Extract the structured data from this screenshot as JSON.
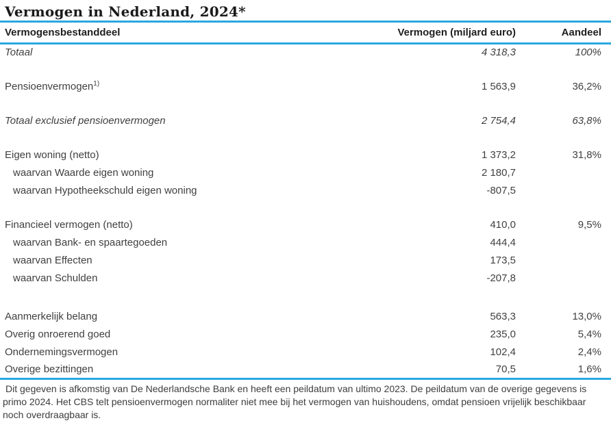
{
  "title": "Vermogen in Nederland, 2024*",
  "colors": {
    "accent_blue": "#2aa7e1",
    "title_text": "#1a1a1a",
    "body_text": "#3f3f3f"
  },
  "table": {
    "columns": [
      "Vermogensbestanddeel",
      "Vermogen (miljard euro)",
      "Aandeel"
    ],
    "rows": [
      {
        "label": "Totaal",
        "value": "4 318,3",
        "share": "100%",
        "style": "italic"
      },
      {
        "label": "Pensioenvermogen",
        "sup": "1)",
        "value": "1 563,9",
        "share": "36,2%",
        "style": "normal"
      },
      {
        "label": "Totaal exclusief pensioenvermogen",
        "value": "2 754,4",
        "share": "63,8%",
        "style": "italic"
      },
      {
        "label": "Eigen woning (netto)",
        "value": "1 373,2",
        "share": "31,8%",
        "style": "normal"
      },
      {
        "label": "waarvan Waarde eigen woning",
        "value": "2 180,7",
        "share": "",
        "style": "sub"
      },
      {
        "label": "waarvan Hypotheekschuld eigen woning",
        "value": "-807,5",
        "share": "",
        "style": "sub"
      },
      {
        "label": "Financieel vermogen (netto)",
        "value": "410,0",
        "share": "9,5%",
        "style": "normal"
      },
      {
        "label": "waarvan Bank- en spaartegoeden",
        "value": "444,4",
        "share": "",
        "style": "sub"
      },
      {
        "label": "waarvan Effecten",
        "value": "173,5",
        "share": "",
        "style": "sub"
      },
      {
        "label": "waarvan Schulden",
        "value": "-207,8",
        "share": "",
        "style": "sub"
      },
      {
        "label": "Aanmerkelijk belang",
        "value": "563,3",
        "share": "13,0%",
        "style": "normal"
      },
      {
        "label": "Overig onroerend goed",
        "value": "235,0",
        "share": "5,4%",
        "style": "normal"
      },
      {
        "label": "Ondernemingsvermogen",
        "value": "102,4",
        "share": "2,4%",
        "style": "normal"
      },
      {
        "label": "Overige bezittingen",
        "value": "70,5",
        "share": "1,6%",
        "style": "normal"
      }
    ]
  },
  "footnote": "Dit gegeven is afkomstig van De Nederlandsche Bank en heeft een peildatum van ultimo 2023. De peildatum van de overige gegevens is primo 2024. Het CBS telt pensioenvermogen normaliter niet mee bij het vermogen van huishoudens, omdat pensioen vrijelijk beschikbaar noch overdraagbaar is."
}
